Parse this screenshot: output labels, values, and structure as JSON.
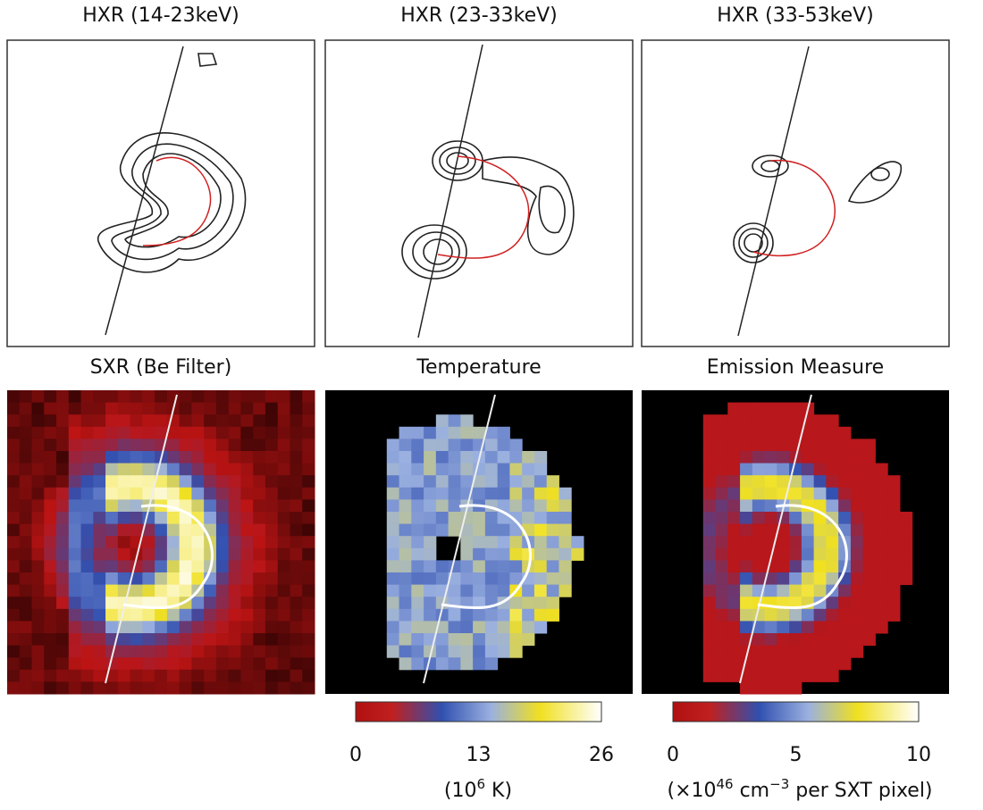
{
  "panels": [
    {
      "title": "HXR (14-23keV)"
    },
    {
      "title": "HXR (23-33keV)"
    },
    {
      "title": "HXR (33-53keV)"
    },
    {
      "title": "SXR (Be Filter)"
    },
    {
      "title": "Temperature"
    },
    {
      "title": "Emission Measure"
    }
  ],
  "colorbars": [
    {
      "ticks": [
        "0",
        "13",
        "26"
      ],
      "unit": {
        "open": "(10",
        "sup": "6",
        "rest": " K)"
      }
    },
    {
      "ticks": [
        "0",
        "5",
        "10"
      ],
      "unit": {
        "open": "(×10",
        "sup": "46",
        "mid": " cm",
        "sup2": "−3",
        "rest": " per SXT pixel)"
      }
    }
  ]
}
